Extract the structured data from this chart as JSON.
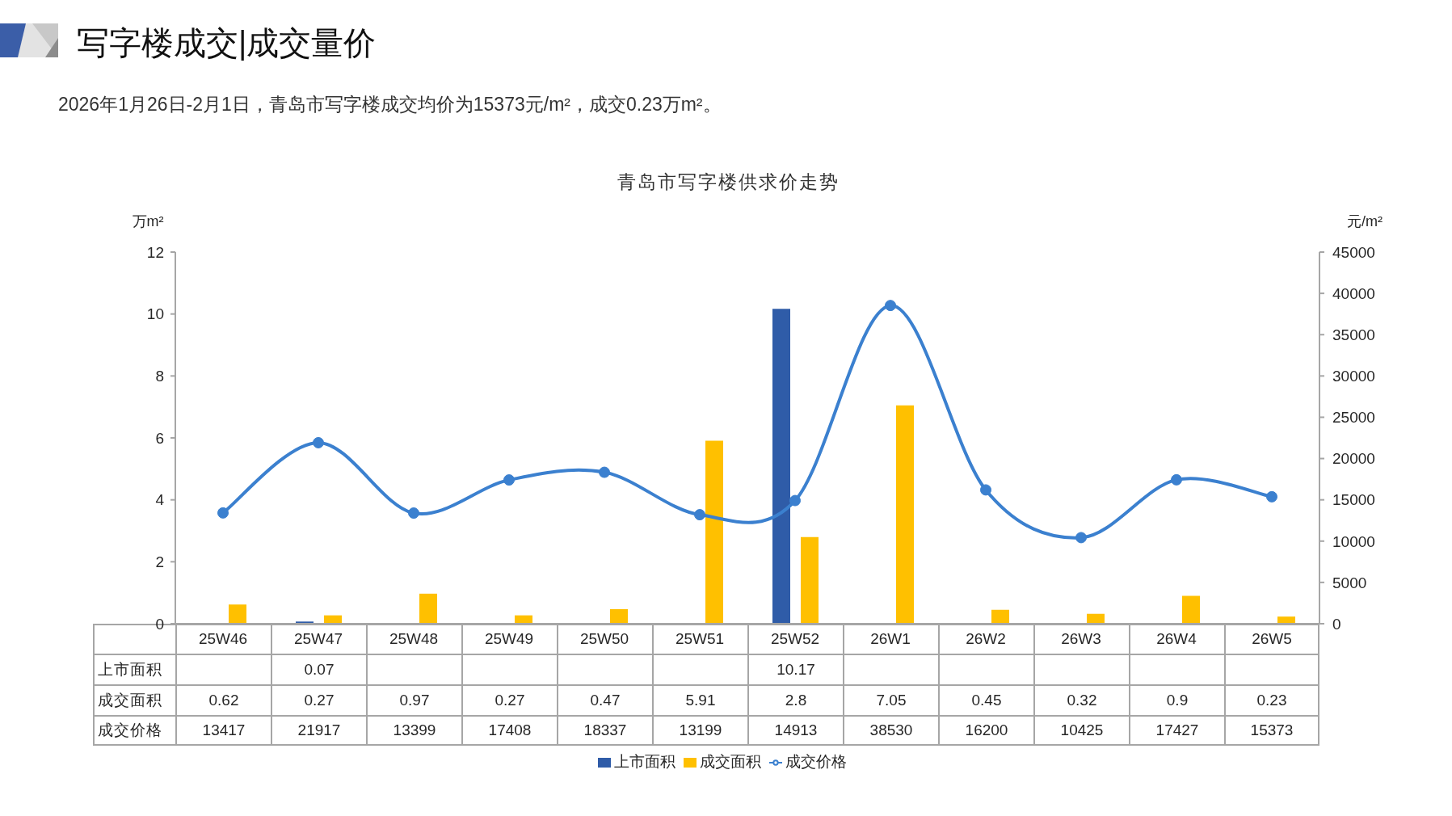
{
  "chart_data": {
    "type": "bar",
    "title": "青岛市写字楼供求价走势",
    "annotations": [
      "写字楼成交|成交量价",
      "2026年1月26日-2月1日，青岛市写字楼成交均价为15373元/m²，成交0.23万m²。"
    ],
    "ylabel": "万m²",
    "y2label": "元/m²",
    "categories": [
      "25W46",
      "25W47",
      "25W48",
      "25W49",
      "25W50",
      "25W51",
      "25W52",
      "26W1",
      "26W2",
      "26W3",
      "26W4",
      "26W5"
    ],
    "series": [
      {
        "name": "上市面积",
        "color": "#2f5ca8",
        "values": [
          null,
          0.07,
          null,
          null,
          null,
          null,
          10.17,
          null,
          null,
          null,
          null,
          null
        ]
      },
      {
        "name": "成交面积",
        "color": "#ffc000",
        "values": [
          0.62,
          0.27,
          0.97,
          0.27,
          0.47,
          5.91,
          2.8,
          7.05,
          0.45,
          0.32,
          0.9,
          0.23
        ]
      },
      {
        "name": "成交价格",
        "type": "line",
        "axis": "y2",
        "color": "#3b80cf",
        "values": [
          13417,
          21917,
          13399,
          17408,
          18337,
          13199,
          14913,
          38530,
          16200,
          10425,
          17427,
          15373
        ]
      }
    ],
    "ylim": [
      0,
      12
    ],
    "yticks": [
      0,
      2,
      4,
      6,
      8,
      10,
      12
    ],
    "y2lim": [
      0,
      45000
    ],
    "y2ticks": [
      0,
      5000,
      10000,
      15000,
      20000,
      25000,
      30000,
      35000,
      40000,
      45000
    ],
    "marker": "circle",
    "legend": "bottom",
    "data_labels": true
  }
}
